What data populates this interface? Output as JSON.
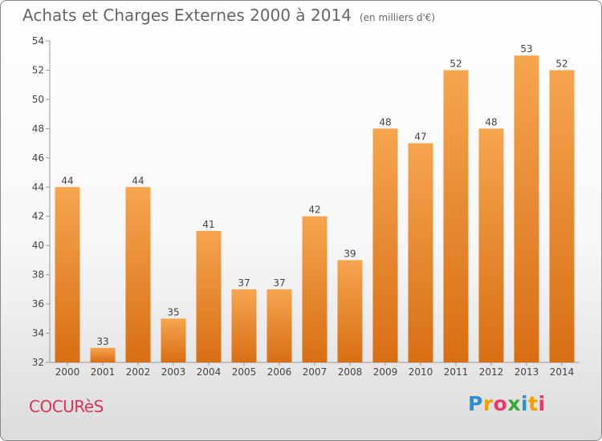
{
  "title": "Achats et Charges Externes 2000 à 2014",
  "subtitle": "(en milliers d'€)",
  "commune": "COCURèS",
  "logo": [
    "P",
    "r",
    "o",
    "x",
    "i",
    "t",
    "i"
  ],
  "colors": {
    "bar_light": "#f6a54f",
    "bar_dark": "#d86e14",
    "commune_text": "#dd3355"
  },
  "chart_data": {
    "type": "bar",
    "title": "Achats et Charges Externes 2000 à 2014",
    "subtitle": "(en milliers d'€)",
    "categories": [
      "2000",
      "2001",
      "2002",
      "2003",
      "2004",
      "2005",
      "2006",
      "2007",
      "2008",
      "2009",
      "2010",
      "2011",
      "2012",
      "2013",
      "2014"
    ],
    "values": [
      44,
      33,
      44,
      35,
      41,
      37,
      37,
      42,
      39,
      48,
      47,
      52,
      48,
      53,
      52
    ],
    "ylim": [
      32,
      54
    ],
    "yticks": [
      32,
      34,
      36,
      38,
      40,
      42,
      44,
      46,
      48,
      50,
      52,
      54
    ],
    "grid": false,
    "data_labels": true
  }
}
